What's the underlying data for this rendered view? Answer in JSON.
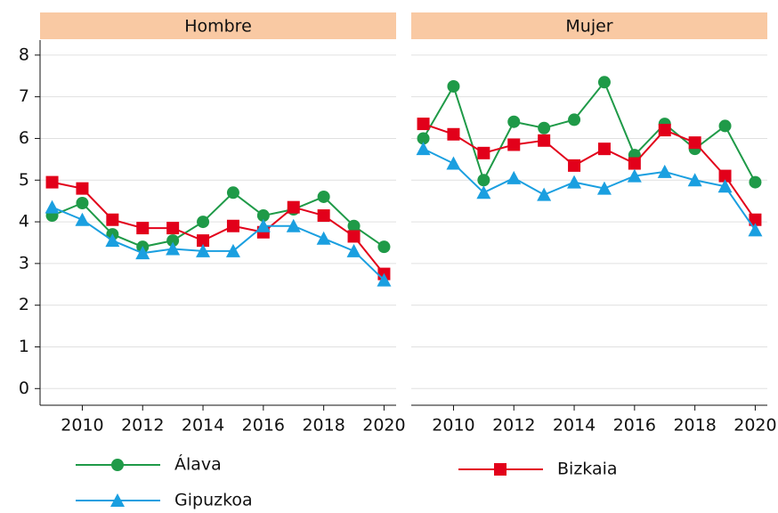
{
  "chart_data": [
    {
      "type": "line",
      "title": "Hombre",
      "x": [
        2009,
        2010,
        2011,
        2012,
        2013,
        2014,
        2015,
        2016,
        2017,
        2018,
        2019,
        2020
      ],
      "xlim": [
        2008.6,
        2020.4
      ],
      "xticks": [
        2010,
        2012,
        2014,
        2016,
        2018,
        2020
      ],
      "ylim": [
        -0.4,
        8.36
      ],
      "yticks": [
        0,
        1,
        2,
        3,
        4,
        5,
        6,
        7,
        8
      ],
      "grid": true,
      "legend": "bottom",
      "series": [
        {
          "name": "Álava",
          "color": "#1f9a48",
          "marker": "circle",
          "values": [
            4.15,
            4.45,
            3.7,
            3.4,
            3.55,
            4.0,
            4.7,
            4.15,
            4.3,
            4.6,
            3.9,
            3.4
          ]
        },
        {
          "name": "Bizkaia",
          "color": "#e2001a",
          "marker": "square",
          "values": [
            4.95,
            4.8,
            4.05,
            3.85,
            3.85,
            3.55,
            3.9,
            3.75,
            4.35,
            4.15,
            3.65,
            2.75
          ]
        },
        {
          "name": "Gipuzkoa",
          "color": "#1a9fe0",
          "marker": "triangle",
          "values": [
            4.35,
            4.05,
            3.55,
            3.25,
            3.35,
            3.3,
            3.3,
            3.9,
            3.9,
            3.6,
            3.3,
            2.6
          ]
        }
      ]
    },
    {
      "type": "line",
      "title": "Mujer",
      "x": [
        2009,
        2010,
        2011,
        2012,
        2013,
        2014,
        2015,
        2016,
        2017,
        2018,
        2019,
        2020
      ],
      "xlim": [
        2008.6,
        2020.4
      ],
      "xticks": [
        2010,
        2012,
        2014,
        2016,
        2018,
        2020
      ],
      "ylim": [
        -0.4,
        8.36
      ],
      "yticks": [
        0,
        1,
        2,
        3,
        4,
        5,
        6,
        7,
        8
      ],
      "grid": true,
      "series": [
        {
          "name": "Álava",
          "color": "#1f9a48",
          "marker": "circle",
          "values": [
            6.0,
            7.25,
            5.0,
            6.4,
            6.25,
            6.45,
            7.35,
            5.6,
            6.35,
            5.75,
            6.3,
            4.95
          ]
        },
        {
          "name": "Bizkaia",
          "color": "#e2001a",
          "marker": "square",
          "values": [
            6.35,
            6.1,
            5.65,
            5.85,
            5.95,
            5.35,
            5.75,
            5.4,
            6.2,
            5.9,
            5.1,
            4.05
          ]
        },
        {
          "name": "Gipuzkoa",
          "color": "#1a9fe0",
          "marker": "triangle",
          "values": [
            5.75,
            5.4,
            4.7,
            5.05,
            4.65,
            4.95,
            4.8,
            5.1,
            5.2,
            5.0,
            4.85,
            3.8
          ]
        }
      ]
    }
  ]
}
